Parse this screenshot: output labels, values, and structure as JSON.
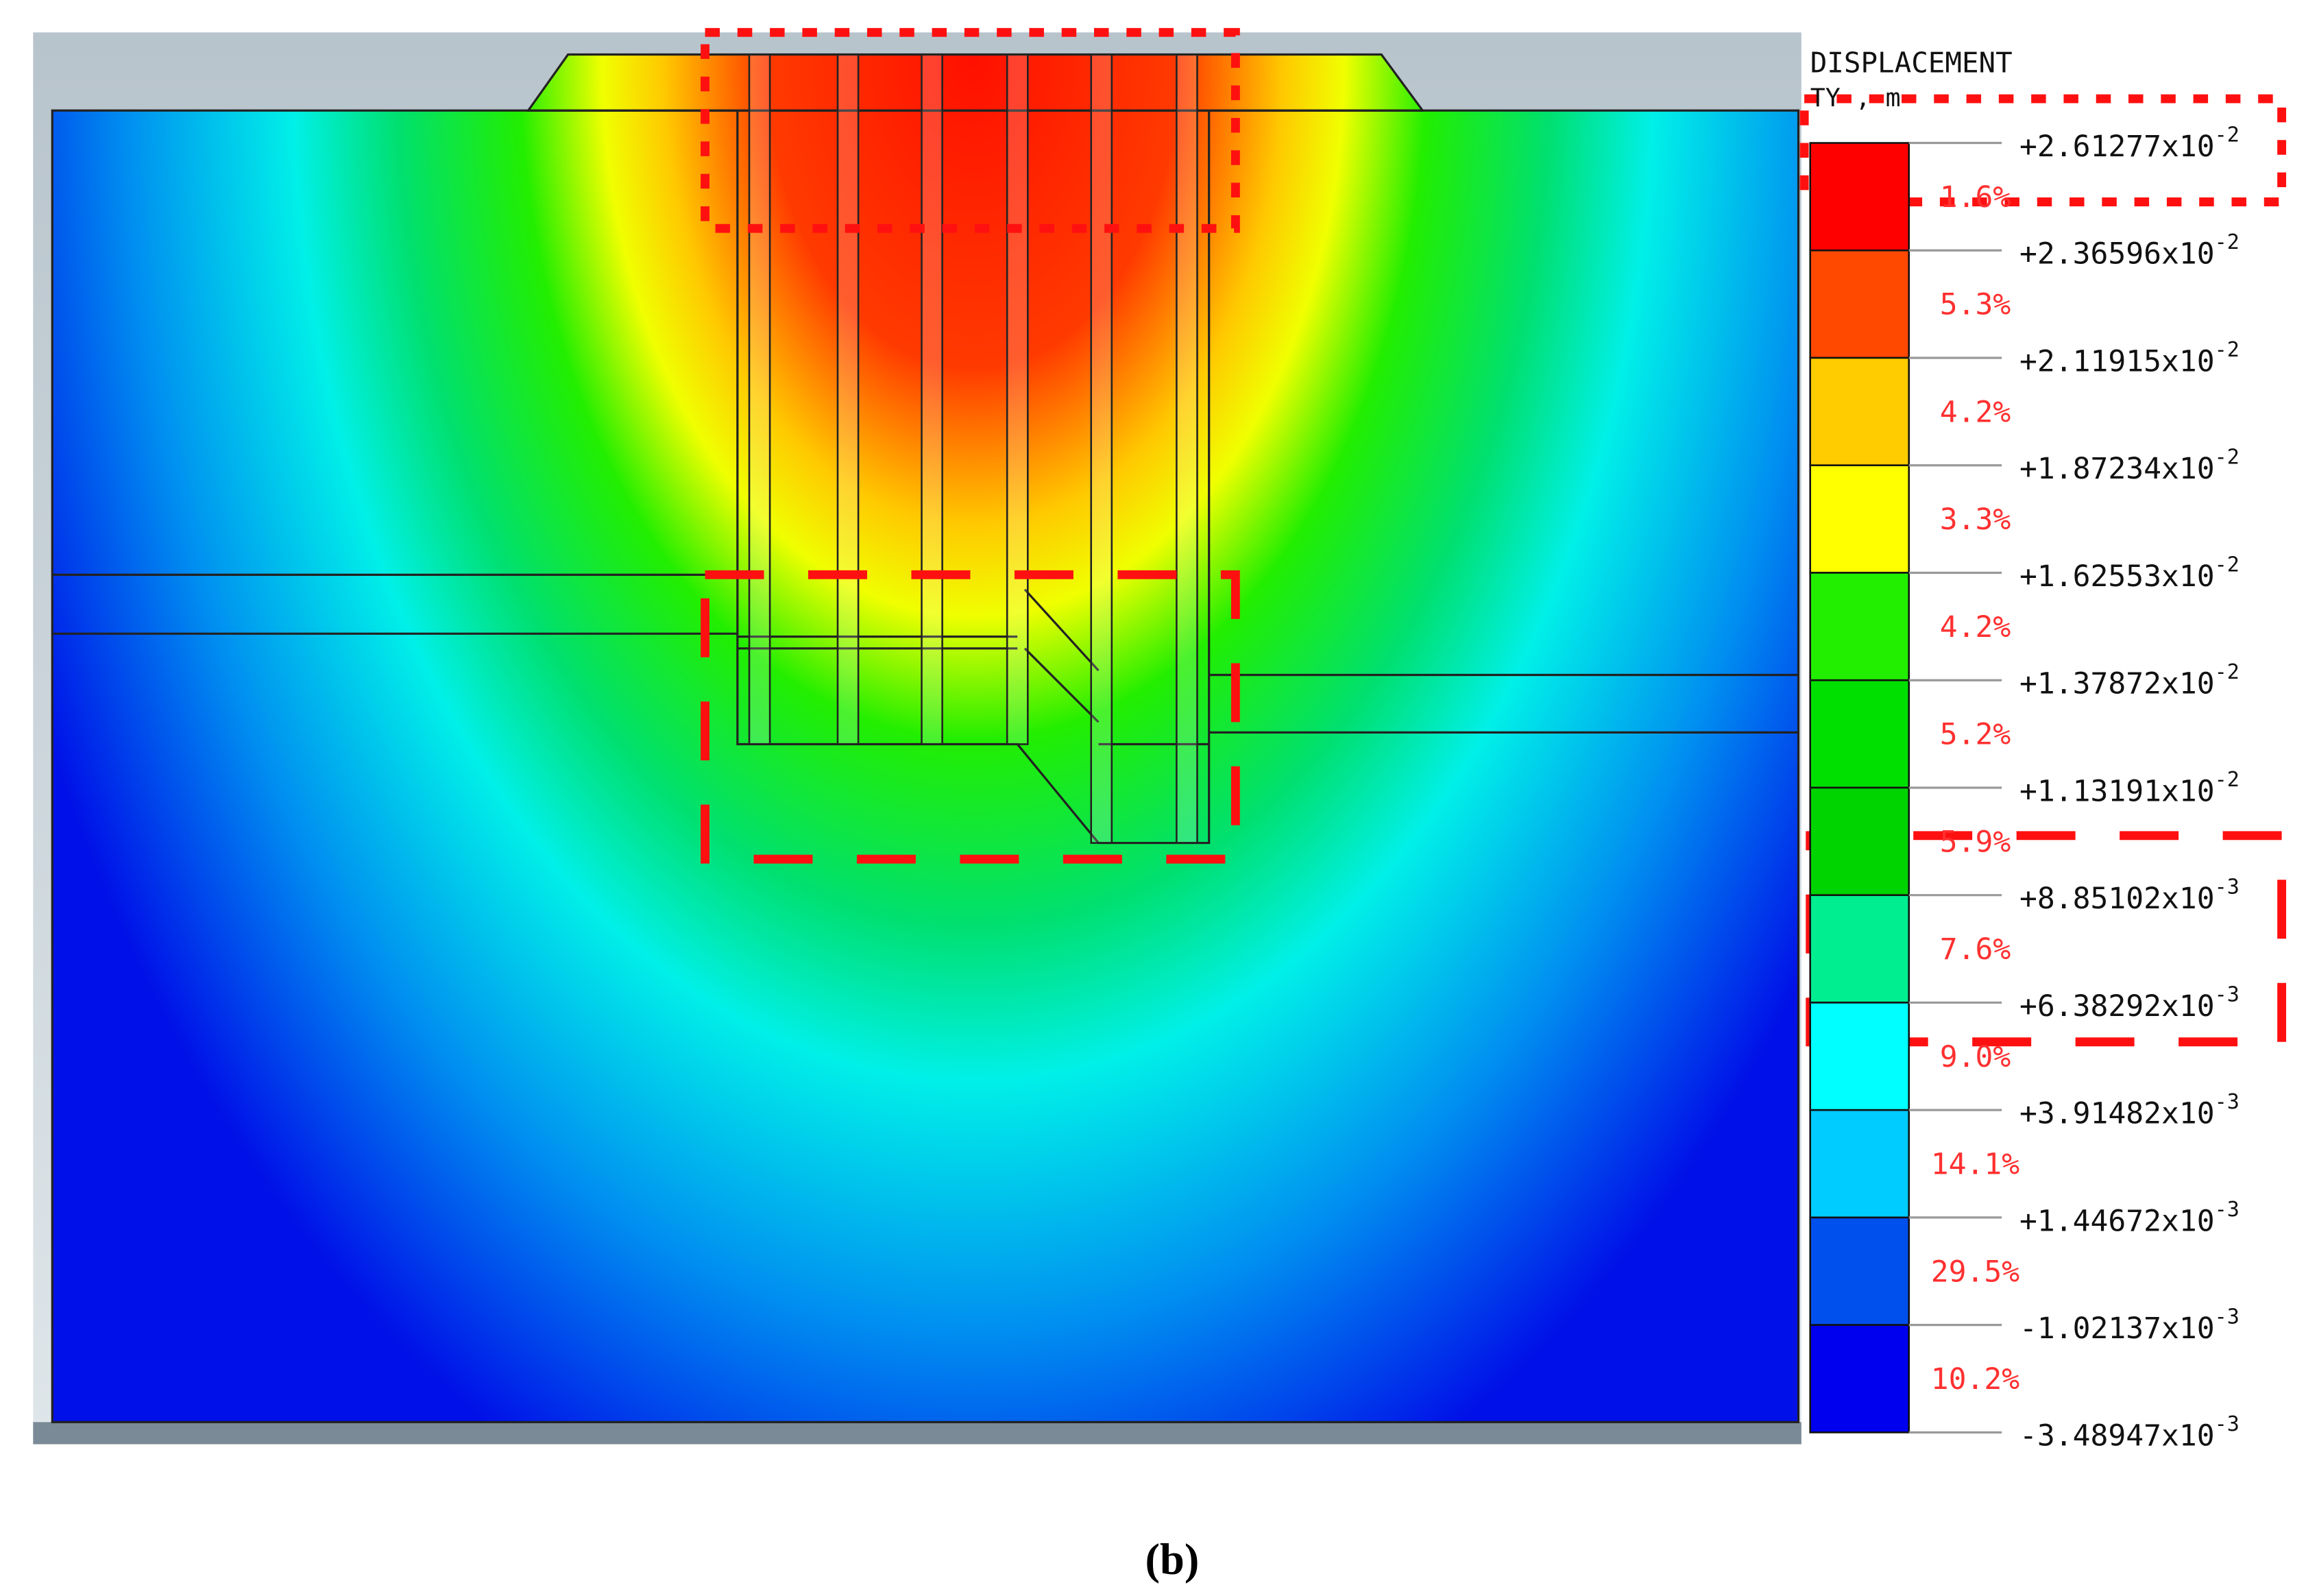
{
  "legend": {
    "title": "DISPLACEMENT",
    "unit": "TY , m",
    "levels": [
      {
        "mantissa": "+2.61277x10",
        "exponent": "-2"
      },
      {
        "mantissa": "+2.36596x10",
        "exponent": "-2"
      },
      {
        "mantissa": "+2.11915x10",
        "exponent": "-2"
      },
      {
        "mantissa": "+1.87234x10",
        "exponent": "-2"
      },
      {
        "mantissa": "+1.62553x10",
        "exponent": "-2"
      },
      {
        "mantissa": "+1.37872x10",
        "exponent": "-2"
      },
      {
        "mantissa": "+1.13191x10",
        "exponent": "-2"
      },
      {
        "mantissa": "+8.85102x10",
        "exponent": "-3"
      },
      {
        "mantissa": "+6.38292x10",
        "exponent": "-3"
      },
      {
        "mantissa": "+3.91482x10",
        "exponent": "-3"
      },
      {
        "mantissa": "+1.44672x10",
        "exponent": "-3"
      },
      {
        "mantissa": "-1.02137x10",
        "exponent": "-3"
      },
      {
        "mantissa": "-3.48947x10",
        "exponent": "-3"
      }
    ],
    "bands": [
      {
        "percent": "1.6%",
        "color": "#ff0000"
      },
      {
        "percent": "5.3%",
        "color": "#ff4800"
      },
      {
        "percent": "4.2%",
        "color": "#ffcc00"
      },
      {
        "percent": "3.3%",
        "color": "#ffff00"
      },
      {
        "percent": "4.2%",
        "color": "#22ee00"
      },
      {
        "percent": "5.2%",
        "color": "#00e000"
      },
      {
        "percent": "5.9%",
        "color": "#00d400"
      },
      {
        "percent": "7.6%",
        "color": "#00ee90"
      },
      {
        "percent": "9.0%",
        "color": "#00ffff"
      },
      {
        "percent": "14.1%",
        "color": "#00ccff"
      },
      {
        "percent": "29.5%",
        "color": "#0050ee"
      },
      {
        "percent": "10.2%",
        "color": "#0000ee"
      }
    ]
  },
  "caption": "(b)"
}
